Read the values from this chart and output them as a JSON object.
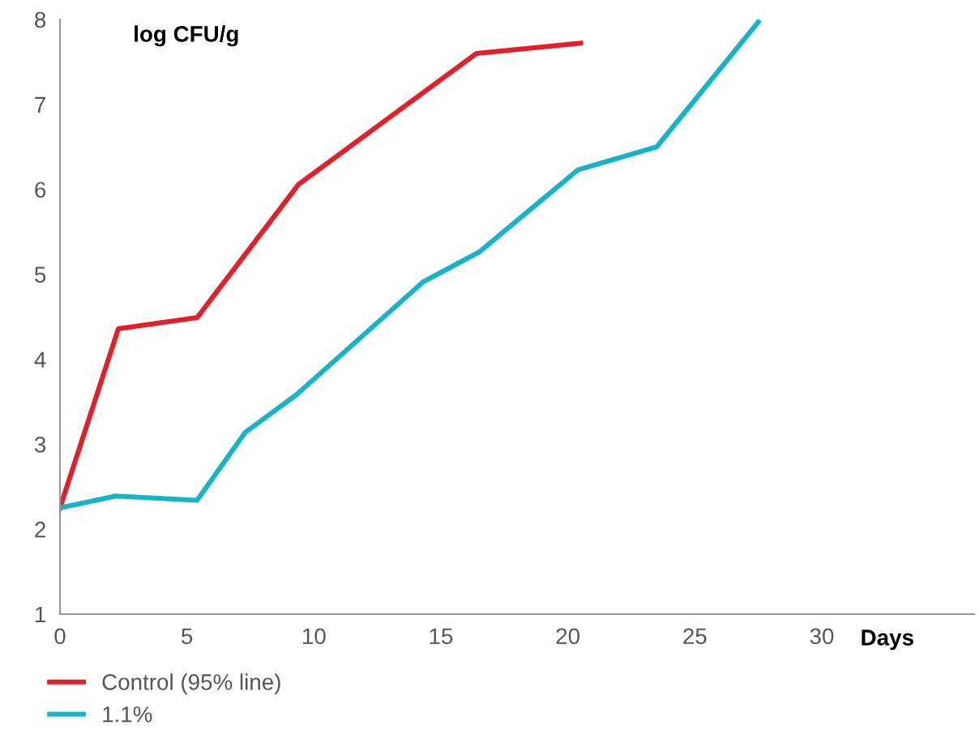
{
  "chart_data": {
    "type": "line",
    "xlabel": "Days",
    "ylabel": "log CFU/g",
    "xlim": [
      0,
      36
    ],
    "xticks": [
      0,
      5,
      10,
      15,
      20,
      25,
      30
    ],
    "ylim": [
      1,
      8
    ],
    "yticks": [
      1,
      2,
      3,
      4,
      5,
      6,
      7,
      8
    ],
    "grid": false,
    "legend": "bottom left",
    "marker": "none",
    "line_style": "solid",
    "series": [
      {
        "name": "Control (95% line)",
        "color": "#e0202a",
        "x": [
          0,
          2.3,
          5.4,
          9.4,
          16.4,
          20.5
        ],
        "values": [
          2.25,
          4.36,
          4.49,
          6.06,
          7.6,
          7.72
        ]
      },
      {
        "name": "1.1%",
        "color": "#17b3c9",
        "x": [
          0,
          2.2,
          5.4,
          7.3,
          9.3,
          14.3,
          16.5,
          20.4,
          23.5,
          27.5
        ],
        "values": [
          2.25,
          2.39,
          2.34,
          3.14,
          3.58,
          4.91,
          5.26,
          6.23,
          6.5,
          7.97
        ]
      }
    ]
  }
}
